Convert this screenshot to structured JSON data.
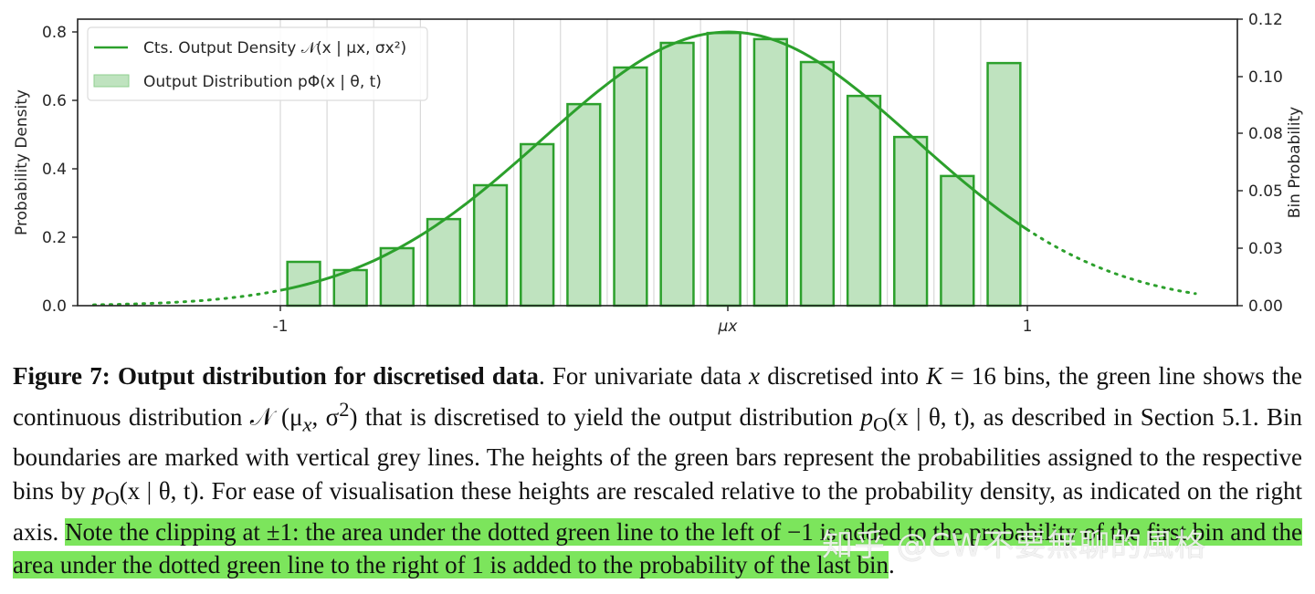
{
  "chart_data": {
    "type": "bar",
    "title": "",
    "xlabel": "",
    "ylabel": "Probability Density",
    "ylabel_right": "Bin Probability",
    "ylim": [
      0,
      0.84
    ],
    "ylim_right": [
      0,
      0.126
    ],
    "xlim": [
      -1.6,
      1.5
    ],
    "x_ticks": [
      {
        "value": -1,
        "label": "-1"
      },
      {
        "value": 0.2,
        "label": "μx"
      },
      {
        "value": 1,
        "label": "1"
      }
    ],
    "y_ticks": [
      "0.0",
      "0.2",
      "0.4",
      "0.6",
      "0.8"
    ],
    "y_ticks_right": [
      "0.00",
      "0.03",
      "0.05",
      "0.08",
      "0.10",
      "0.12"
    ],
    "grid": "vertical bin boundaries (grey)",
    "legend_position": "upper left",
    "bins": 16,
    "bin_edges": [
      -1,
      -0.875,
      -0.75,
      -0.625,
      -0.5,
      -0.375,
      -0.25,
      -0.125,
      0,
      0.125,
      0.25,
      0.375,
      0.5,
      0.625,
      0.75,
      0.875,
      1
    ],
    "series": [
      {
        "name": "Output Distribution p_o(x | θ, t)",
        "kind": "bar",
        "color": "#2ca02c",
        "fill": "#bfe3bf",
        "values_density_scale": [
          0.128,
          0.104,
          0.168,
          0.253,
          0.352,
          0.472,
          0.589,
          0.696,
          0.768,
          0.797,
          0.779,
          0.712,
          0.613,
          0.493,
          0.379,
          0.709
        ],
        "values_bin_probability": [
          0.019,
          0.016,
          0.025,
          0.038,
          0.053,
          0.071,
          0.088,
          0.104,
          0.115,
          0.12,
          0.117,
          0.107,
          0.092,
          0.074,
          0.057,
          0.106
        ]
      },
      {
        "name": "Cts. Output Density N(x | μx, σx²)",
        "kind": "line",
        "color": "#2ca02c",
        "mu": 0.2,
        "sigma": 0.5,
        "peak_density": 0.8,
        "solid_range": [
          -1,
          1
        ],
        "dotted_range": [
          -1.5,
          1.45
        ]
      }
    ],
    "legend": [
      {
        "label": "Cts. Output Density 𝒩(x | μx, σx²)",
        "type": "line"
      },
      {
        "label": "Output Distribution pΦ(x | θ, t)",
        "type": "patch"
      }
    ]
  },
  "caption": {
    "label": "Figure 7: Output distribution for discretised data",
    "segments": [
      ". For univariate data ",
      "x",
      " discretised into ",
      "K",
      " = 16 bins, the green line shows the continuous distribution 𝒩 (μ",
      "x",
      ", σ",
      "2x",
      ") that is discretised to yield the output distribution ",
      "p",
      "O",
      "(x | θ, t), as described in Section 5.1. Bin boundaries are marked with vertical grey lines. The heights of the green bars represent the probabilities assigned to the respective bins by ",
      "p",
      "O",
      "(x | θ, t). For ease of visualisation these heights are rescaled relative to the probability density, as indicated on the right axis. "
    ],
    "highlighted": "Note the clipping at ±1: the area under the dotted green line to the left of −1 is added to the probability of the first bin and the area under the dotted green line to the right of 1 is added to the probability of the last bin",
    "trailing": "."
  },
  "watermark": "知乎 @CW不要無聊的風格",
  "colors": {
    "green_line": "#2ca02c",
    "bar_fill": "#bfe3bf",
    "grid": "#d9d9d9",
    "highlight": "#7ce55c"
  }
}
